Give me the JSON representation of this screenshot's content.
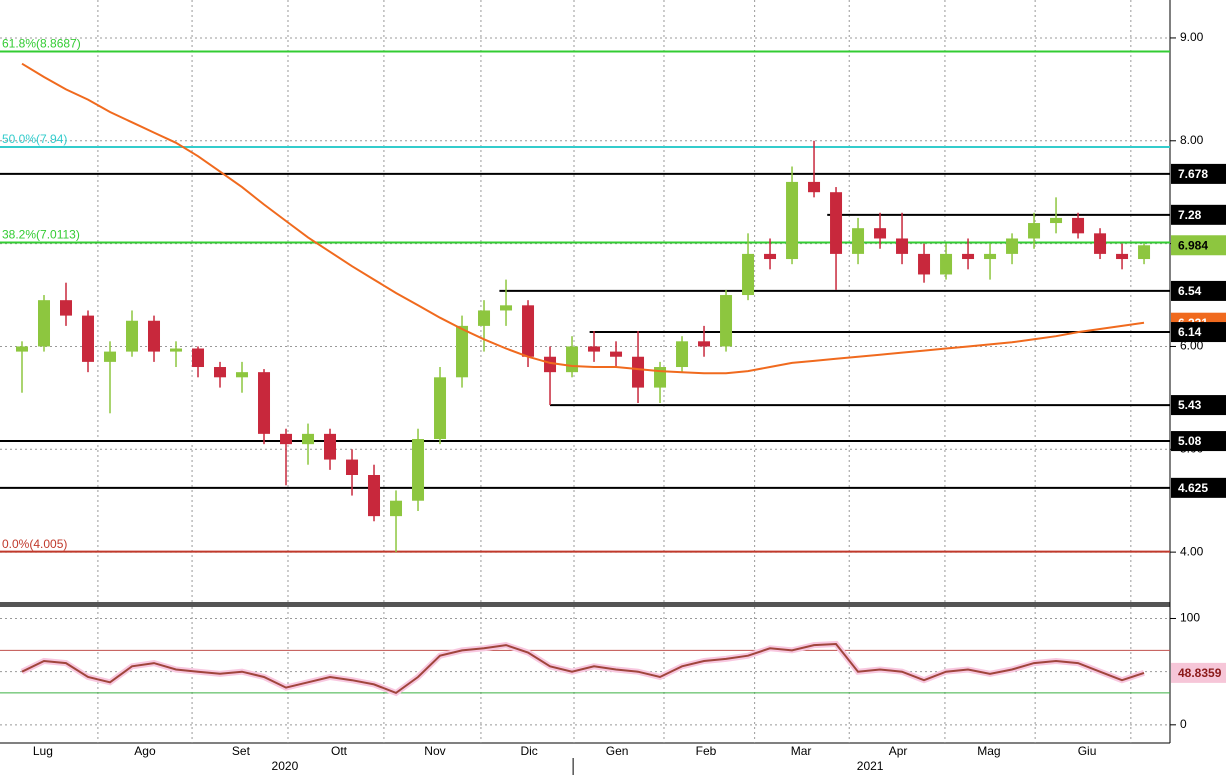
{
  "chart_data": [
    {
      "type": "candlestick",
      "up_color": "#8dc63f",
      "down_color": "#c8283c",
      "xlim": [
        -1,
        52.18
      ],
      "ylim": [
        3.515,
        9.369
      ],
      "xgrid": [
        3.45,
        7.73,
        12.09,
        16.45,
        20.86,
        25.09,
        29.18,
        33.3,
        37.6,
        41.95,
        46.05,
        50.4
      ],
      "yticks": [
        {
          "value": 4,
          "label": "4.00"
        },
        {
          "value": 5,
          "label": "5.00"
        },
        {
          "value": 6,
          "label": "6.00"
        },
        {
          "value": 7,
          "label": "7.00"
        },
        {
          "value": 8,
          "label": "8.00"
        },
        {
          "value": 9,
          "label": "9.00"
        }
      ],
      "grid": true,
      "open": [
        5.95,
        6.0,
        6.45,
        6.3,
        5.85,
        5.95,
        6.25,
        5.95,
        5.98,
        5.8,
        5.7,
        5.75,
        5.15,
        5.05,
        5.15,
        4.9,
        4.75,
        4.35,
        4.5,
        5.1,
        5.7,
        6.2,
        6.35,
        6.4,
        5.9,
        5.75,
        6.0,
        5.95,
        5.9,
        5.6,
        5.8,
        6.05,
        6.0,
        6.5,
        6.9,
        6.85,
        7.6,
        7.5,
        6.9,
        7.15,
        7.05,
        6.9,
        6.7,
        6.9,
        6.85,
        6.9,
        7.05,
        7.2,
        7.25,
        7.1,
        6.9,
        6.85
      ],
      "high": [
        6.05,
        6.5,
        6.62,
        6.35,
        6.05,
        6.35,
        6.3,
        6.05,
        6.0,
        5.85,
        5.85,
        5.78,
        5.2,
        5.25,
        5.2,
        5.0,
        4.85,
        4.6,
        5.2,
        5.8,
        6.3,
        6.45,
        6.65,
        6.45,
        6.0,
        6.1,
        6.15,
        6.05,
        6.15,
        5.85,
        6.1,
        6.2,
        6.55,
        7.1,
        7.05,
        7.75,
        8.0,
        7.55,
        7.25,
        7.3,
        7.3,
        7.0,
        7.0,
        7.05,
        7.0,
        7.1,
        7.3,
        7.45,
        7.3,
        7.15,
        7.0,
        7.0
      ],
      "low": [
        5.55,
        5.95,
        6.2,
        5.75,
        5.35,
        5.9,
        5.85,
        5.8,
        5.7,
        5.6,
        5.55,
        5.05,
        4.65,
        4.85,
        4.8,
        4.55,
        4.3,
        4.0,
        4.4,
        5.05,
        5.6,
        5.95,
        6.2,
        5.8,
        5.43,
        5.7,
        5.85,
        5.8,
        5.45,
        5.45,
        5.75,
        5.9,
        5.95,
        6.45,
        6.75,
        6.8,
        7.45,
        6.55,
        6.8,
        6.95,
        6.8,
        6.62,
        6.65,
        6.75,
        6.65,
        6.8,
        6.95,
        7.1,
        7.05,
        6.85,
        6.75,
        6.8
      ],
      "close": [
        6.0,
        6.45,
        6.3,
        5.85,
        5.95,
        6.25,
        5.95,
        5.98,
        5.8,
        5.7,
        5.75,
        5.15,
        5.05,
        5.15,
        4.9,
        4.75,
        4.35,
        4.5,
        5.1,
        5.7,
        6.2,
        6.35,
        6.4,
        5.9,
        5.75,
        6.0,
        5.95,
        5.9,
        5.6,
        5.8,
        6.05,
        6.0,
        6.5,
        6.9,
        6.85,
        7.6,
        7.5,
        6.9,
        7.15,
        7.05,
        6.9,
        6.7,
        6.9,
        6.85,
        6.9,
        7.05,
        7.2,
        7.25,
        7.1,
        6.9,
        6.85,
        6.984
      ],
      "ma": {
        "color": "#f06a1e",
        "values": [
          8.75,
          8.62,
          8.5,
          8.4,
          8.28,
          8.18,
          8.08,
          7.98,
          7.85,
          7.7,
          7.55,
          7.38,
          7.22,
          7.06,
          6.92,
          6.78,
          6.65,
          6.52,
          6.4,
          6.28,
          6.17,
          6.07,
          5.98,
          5.9,
          5.84,
          5.81,
          5.8,
          5.8,
          5.78,
          5.76,
          5.75,
          5.74,
          5.74,
          5.76,
          5.8,
          5.84,
          5.86,
          5.88,
          5.9,
          5.92,
          5.94,
          5.96,
          5.98,
          6.0,
          6.02,
          6.04,
          6.07,
          6.1,
          6.14,
          6.17,
          6.2,
          6.231
        ]
      },
      "fib_levels": [
        {
          "label": "61.8%(8.8687)",
          "value": 8.8687,
          "color": "#33cc33"
        },
        {
          "label": "50.0%(7.94)",
          "value": 7.94,
          "color": "#33cccc"
        },
        {
          "label": "38.2%(7.0113)",
          "value": 7.0113,
          "color": "#33cc33"
        },
        {
          "label": "0.0%(4.005)",
          "value": 4.005,
          "color": "#c0392b"
        }
      ],
      "levels": [
        {
          "value": 7.678
        },
        {
          "value": 7.28,
          "start": 36.6
        },
        {
          "value": 6.54,
          "start": 21.7
        },
        {
          "value": 6.14,
          "start": 25.8
        },
        {
          "value": 5.43,
          "start": 24
        },
        {
          "value": 5.08
        },
        {
          "value": 4.625
        }
      ]
    },
    {
      "type": "line",
      "xlim": [
        -1,
        52.18
      ],
      "ylim": [
        -17.1,
        110.8
      ],
      "yticks": [
        0,
        100
      ],
      "grid_levels": [
        50
      ],
      "bands": [
        {
          "value": 70,
          "color": "#c0504d"
        },
        {
          "value": 30,
          "color": "#3cb043"
        }
      ],
      "xgrid": [
        3.45,
        7.73,
        12.09,
        16.45,
        20.86,
        25.09,
        29.18,
        33.3,
        37.6,
        41.95,
        46.05,
        50.4
      ],
      "xticks": [
        {
          "value": 0.95,
          "label": "Lug"
        },
        {
          "value": 5.59,
          "label": "Ago"
        },
        {
          "value": 9.95,
          "label": "Set"
        },
        {
          "value": 14.41,
          "label": "Ott"
        },
        {
          "value": 18.77,
          "label": "Nov"
        },
        {
          "value": 23.05,
          "label": "Dic"
        },
        {
          "value": 27.05,
          "label": "Gen"
        },
        {
          "value": 31.09,
          "label": "Feb"
        },
        {
          "value": 35.41,
          "label": "Mar"
        },
        {
          "value": 39.82,
          "label": "Apr"
        },
        {
          "value": 43.95,
          "label": "Mag"
        },
        {
          "value": 48.41,
          "label": "Giu"
        }
      ],
      "year_ticks": [
        {
          "value": 11.95,
          "label": "2020"
        },
        {
          "value": 38.55,
          "label": "2021"
        }
      ],
      "year_boundary": 25.05,
      "series": [
        {
          "color": "#a0453c",
          "values": [
            50,
            60,
            58,
            45,
            40,
            55,
            58,
            52,
            50,
            48,
            50,
            45,
            35,
            40,
            45,
            42,
            38,
            30,
            45,
            65,
            70,
            72,
            75,
            68,
            55,
            50,
            55,
            52,
            50,
            45,
            55,
            60,
            62,
            65,
            72,
            70,
            75,
            76,
            50,
            52,
            50,
            42,
            50,
            52,
            48,
            52,
            58,
            60,
            58,
            50,
            42,
            48.8359
          ]
        }
      ]
    }
  ]
}
